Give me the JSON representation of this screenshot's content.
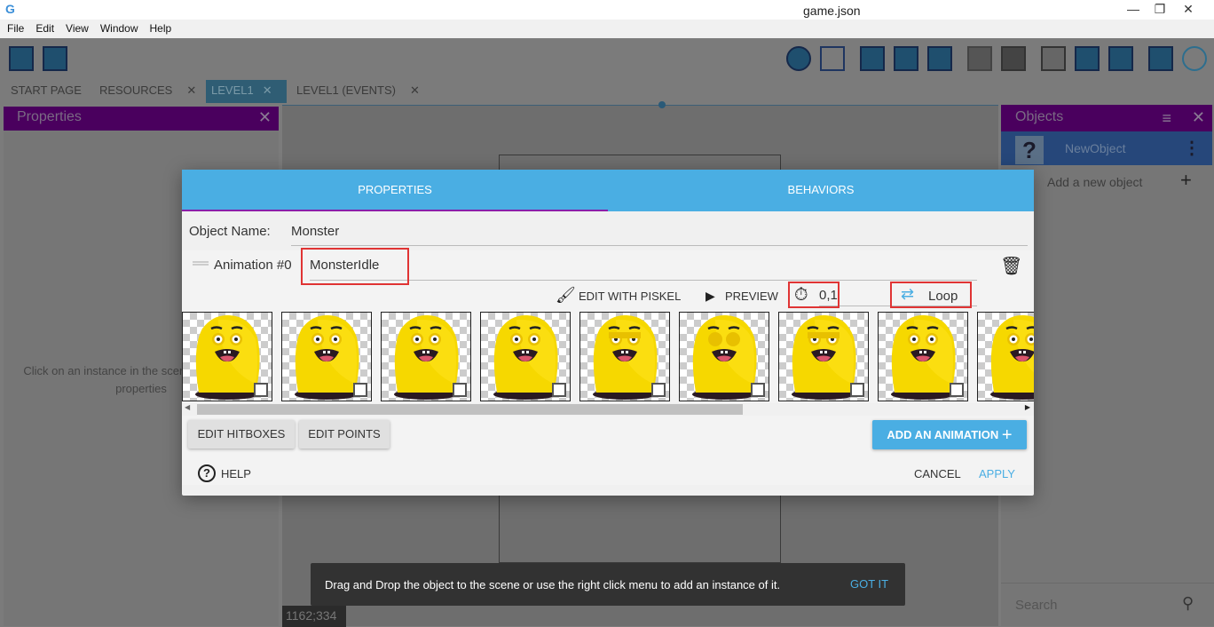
{
  "window": {
    "title": "game.json",
    "min": "—",
    "restore": "❐",
    "close": "✕"
  },
  "menu": [
    "File",
    "Edit",
    "View",
    "Window",
    "Help"
  ],
  "tabs": [
    {
      "label": "START PAGE",
      "closable": false
    },
    {
      "label": "RESOURCES",
      "closable": true
    },
    {
      "label": "LEVEL1",
      "closable": true,
      "active": true
    },
    {
      "label": "LEVEL1 (EVENTS)",
      "closable": true
    }
  ],
  "close_glyph": "✕",
  "properties_panel": {
    "title": "Properties",
    "hint": "Click on an instance in the scene to display its properties"
  },
  "objects_panel": {
    "title": "Objects",
    "item": "NewObject",
    "add": "Add a new object",
    "search_placeholder": "Search"
  },
  "coords": "1162;334",
  "dialog": {
    "tabs": [
      "PROPERTIES",
      "BEHAVIORS"
    ],
    "object_name_label": "Object Name:",
    "object_name": "Monster",
    "animation_label": "Animation #0",
    "animation_name": "MonsterIdle",
    "edit_piskel": "EDIT WITH PISKEL",
    "preview": "PREVIEW",
    "timer": "0,1",
    "loop": "Loop",
    "frames": [
      "open",
      "open",
      "open",
      "open",
      "half",
      "closed",
      "half",
      "open",
      "open"
    ],
    "edit_hitboxes": "EDIT HITBOXES",
    "edit_points": "EDIT POINTS",
    "add_animation": "ADD AN ANIMATION",
    "help": "HELP",
    "cancel": "CANCEL",
    "apply": "APPLY"
  },
  "snackbar": {
    "message": "Drag and Drop the object to the scene or use the right click menu to add an instance of it.",
    "action": "GOT IT"
  },
  "colors": {
    "accent": "#4aaee3",
    "tab_underline": "#8b1fa9",
    "highlight": "#e03434",
    "panel_header": "#4a005e"
  }
}
